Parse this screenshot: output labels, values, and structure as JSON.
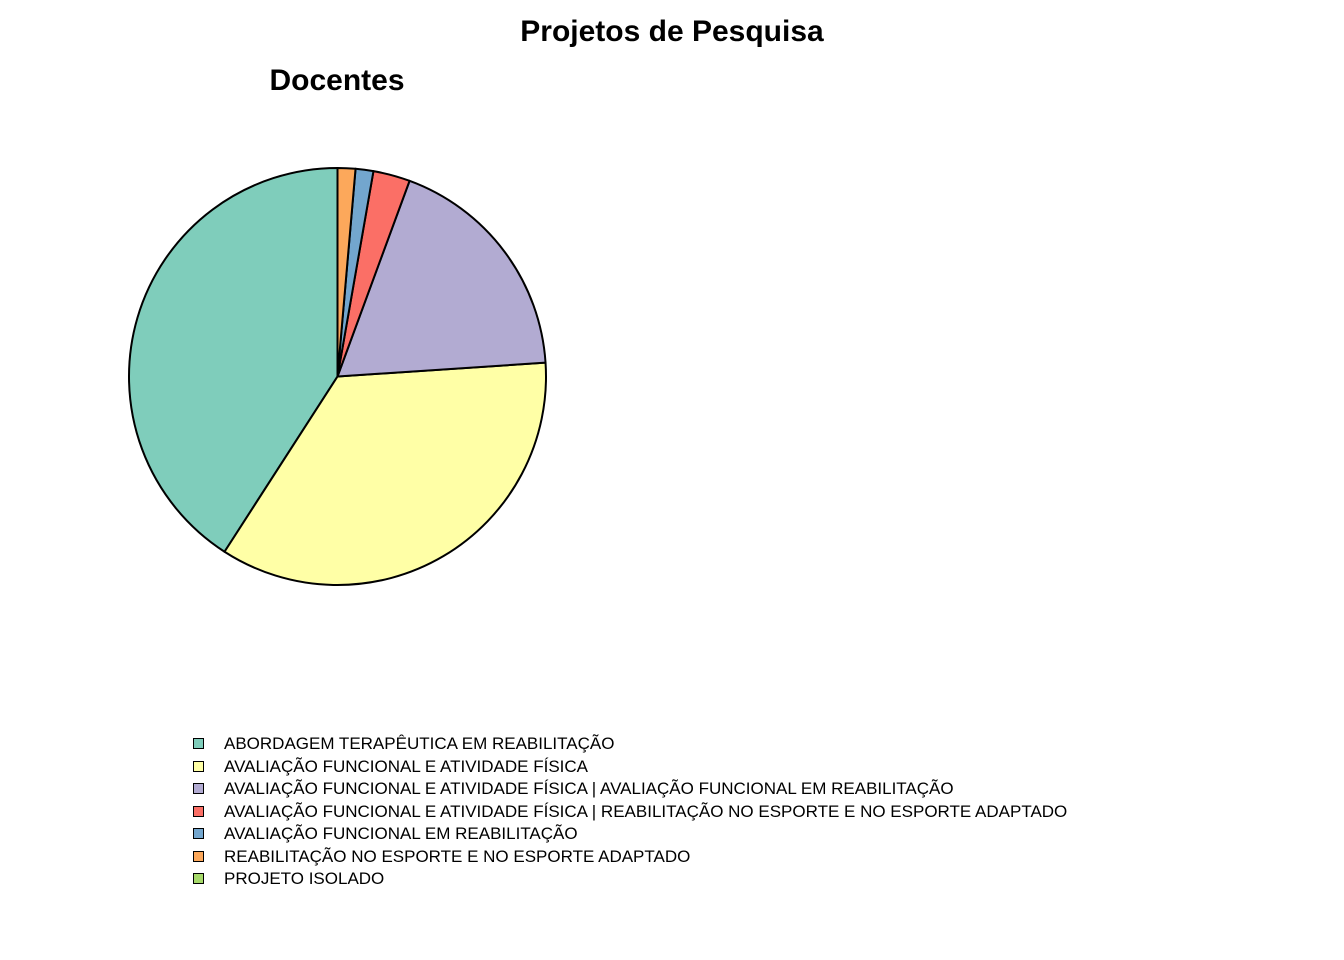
{
  "chart_data": {
    "type": "pie",
    "title": "Projetos de Pesquisa",
    "subtitle": "Docentes",
    "legend_position": "bottom",
    "categories": [
      "ABORDAGEM TERAPÊUTICA EM REABILITAÇÃO",
      "AVALIAÇÃO FUNCIONAL E ATIVIDADE FÍSICA",
      "AVALIAÇÃO FUNCIONAL E ATIVIDADE FÍSICA | AVALIAÇÃO FUNCIONAL EM REABILITAÇÃO",
      "AVALIAÇÃO FUNCIONAL E ATIVIDADE FÍSICA | REABILITAÇÃO NO ESPORTE E NO ESPORTE ADAPTADO",
      "AVALIAÇÃO FUNCIONAL EM REABILITAÇÃO",
      "REABILITAÇÃO NO ESPORTE E NO ESPORTE ADAPTADO",
      "PROJETO ISOLADO"
    ],
    "values": [
      41.5,
      35.7,
      18.6,
      2.9,
      1.4,
      1.4,
      0.0
    ],
    "colors": [
      "#7FCDBB",
      "#FFFFA6",
      "#B2ABD2",
      "#FB6F66",
      "#73A6CE",
      "#FCA85B",
      "#A6D96A"
    ]
  }
}
